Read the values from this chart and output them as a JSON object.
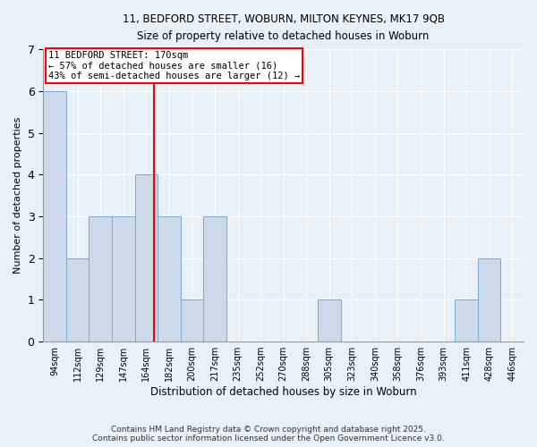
{
  "title_line1": "11, BEDFORD STREET, WOBURN, MILTON KEYNES, MK17 9QB",
  "title_line2": "Size of property relative to detached houses in Woburn",
  "xlabel": "Distribution of detached houses by size in Woburn",
  "ylabel": "Number of detached properties",
  "bins": [
    "94sqm",
    "112sqm",
    "129sqm",
    "147sqm",
    "164sqm",
    "182sqm",
    "200sqm",
    "217sqm",
    "235sqm",
    "252sqm",
    "270sqm",
    "288sqm",
    "305sqm",
    "323sqm",
    "340sqm",
    "358sqm",
    "376sqm",
    "393sqm",
    "411sqm",
    "428sqm",
    "446sqm"
  ],
  "values": [
    6,
    2,
    3,
    3,
    4,
    3,
    1,
    3,
    0,
    0,
    0,
    0,
    1,
    0,
    0,
    0,
    0,
    0,
    1,
    2,
    0
  ],
  "bar_color": "#ccd9ea",
  "bar_edge_color": "#7aaacf",
  "annotation_line1": "11 BEDFORD STREET: 170sqm",
  "annotation_line2": "← 57% of detached houses are smaller (16)",
  "annotation_line3": "43% of semi-detached houses are larger (12) →",
  "annotation_box_color": "white",
  "annotation_box_edge": "red",
  "vline_color": "red",
  "ylim": [
    0,
    7
  ],
  "yticks": [
    0,
    1,
    2,
    3,
    4,
    5,
    6,
    7
  ],
  "footer_line1": "Contains HM Land Registry data © Crown copyright and database right 2025.",
  "footer_line2": "Contains public sector information licensed under the Open Government Licence v3.0.",
  "background_color": "#e8f0f8"
}
